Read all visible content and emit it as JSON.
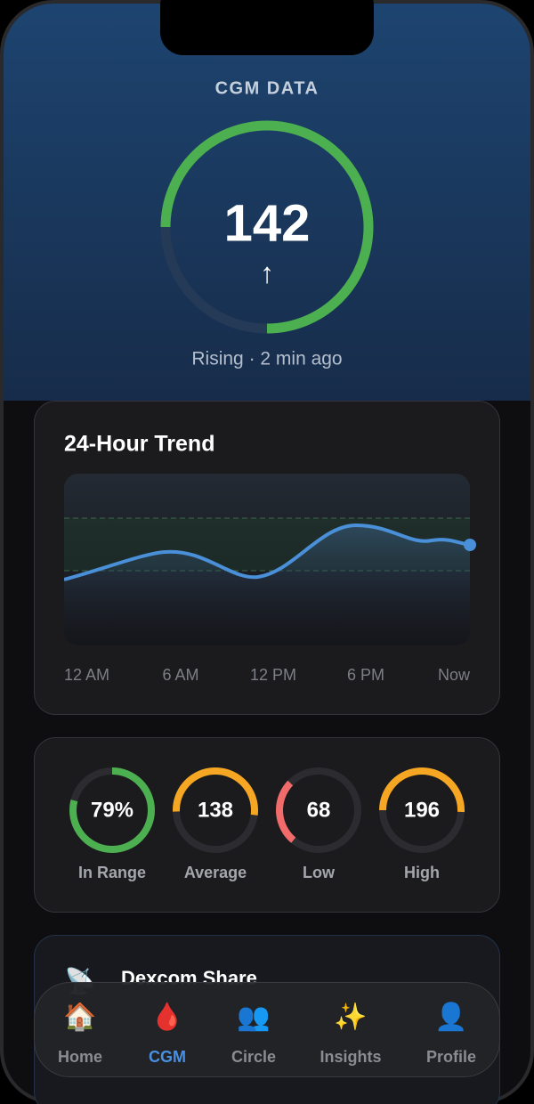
{
  "header": {
    "title": "CGM DATA",
    "reading": "142",
    "arrow": "↑",
    "status": "Rising · 2 min ago"
  },
  "trend": {
    "title": "24-Hour Trend",
    "x_labels": [
      "12 AM",
      "6 AM",
      "12 PM",
      "6 PM",
      "Now"
    ]
  },
  "stats": [
    {
      "value": "79%",
      "label": "In Range"
    },
    {
      "value": "138",
      "label": "Average"
    },
    {
      "value": "68",
      "label": "Low"
    },
    {
      "value": "196",
      "label": "High"
    }
  ],
  "share": {
    "icon": "📡",
    "title": "Dexcom Share"
  },
  "nav": [
    {
      "icon": "🏠",
      "label": "Home"
    },
    {
      "icon": "🩸",
      "label": "CGM"
    },
    {
      "icon": "👥",
      "label": "Circle"
    },
    {
      "icon": "✨",
      "label": "Insights"
    },
    {
      "icon": "👤",
      "label": "Profile"
    }
  ]
}
